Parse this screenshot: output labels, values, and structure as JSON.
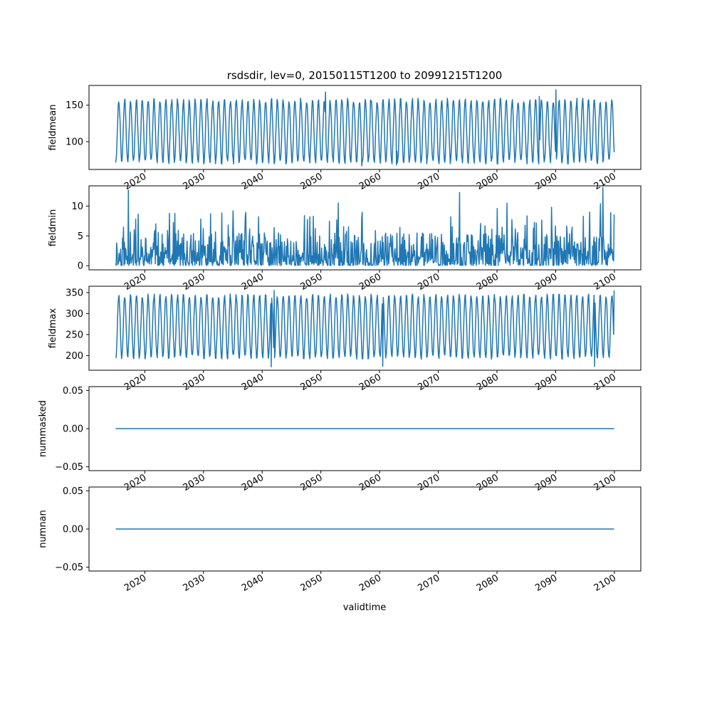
{
  "figure": {
    "title": "rsdsdir, lev=0, 20150115T1200 to 20991215T1200",
    "xlabel": "validtime",
    "series_color": "#1f77b4",
    "axis_color": "#000000"
  },
  "chart_data": [
    {
      "type": "line",
      "ylabel": "fieldmean",
      "ylim": [
        62,
        177
      ],
      "yticks": [
        100,
        150
      ],
      "yticklabels": [
        "100",
        "150"
      ],
      "xlim": [
        2010.5,
        2104.5
      ],
      "xticks": [
        2020,
        2030,
        2040,
        2050,
        2060,
        2070,
        2080,
        2090,
        2100
      ],
      "xticklabels": [
        "2020",
        "2030",
        "2040",
        "2050",
        "2060",
        "2070",
        "2080",
        "2090",
        "2100"
      ],
      "grid": false,
      "series": [
        {
          "frequency": "monthly",
          "x_start": "2015-01",
          "x_end": "2099-12",
          "seasonal_min": 72,
          "seasonal_max": 157,
          "observed_min": 67,
          "observed_max": 171
        }
      ]
    },
    {
      "type": "line",
      "ylabel": "fieldmin",
      "ylim": [
        -0.7,
        13.4
      ],
      "yticks": [
        0,
        5,
        10
      ],
      "yticklabels": [
        "0",
        "5",
        "10"
      ],
      "xlim": [
        2010.5,
        2104.5
      ],
      "xticks": [
        2020,
        2030,
        2040,
        2050,
        2060,
        2070,
        2080,
        2090,
        2100
      ],
      "xticklabels": [
        "2020",
        "2030",
        "2040",
        "2050",
        "2060",
        "2070",
        "2080",
        "2090",
        "2100"
      ],
      "grid": false,
      "series": [
        {
          "frequency": "monthly",
          "x_start": "2015-01",
          "x_end": "2099-12",
          "typical_min": 0,
          "typical_max": 5,
          "observed_max": 13.1
        }
      ]
    },
    {
      "type": "line",
      "ylabel": "fieldmax",
      "ylim": [
        165,
        365
      ],
      "yticks": [
        200,
        250,
        300,
        350
      ],
      "yticklabels": [
        "200",
        "250",
        "300",
        "350"
      ],
      "xlim": [
        2010.5,
        2104.5
      ],
      "xticks": [
        2020,
        2030,
        2040,
        2050,
        2060,
        2070,
        2080,
        2090,
        2100
      ],
      "xticklabels": [
        "2020",
        "2030",
        "2040",
        "2050",
        "2060",
        "2070",
        "2080",
        "2090",
        "2100"
      ],
      "grid": false,
      "series": [
        {
          "frequency": "monthly",
          "x_start": "2015-01",
          "x_end": "2099-12",
          "seasonal_min": 195,
          "seasonal_max": 343,
          "observed_min": 173,
          "observed_max": 355
        }
      ]
    },
    {
      "type": "line",
      "ylabel": "nummasked",
      "ylim": [
        -0.055,
        0.055
      ],
      "yticks": [
        -0.05,
        0.0,
        0.05
      ],
      "yticklabels": [
        "−0.05",
        "0.00",
        "0.05"
      ],
      "xlim": [
        2010.5,
        2104.5
      ],
      "xticks": [
        2020,
        2030,
        2040,
        2050,
        2060,
        2070,
        2080,
        2090,
        2100
      ],
      "xticklabels": [
        "2020",
        "2030",
        "2040",
        "2050",
        "2060",
        "2070",
        "2080",
        "2090",
        "2100"
      ],
      "grid": false,
      "series": [
        {
          "frequency": "monthly",
          "x_start": "2015-01",
          "x_end": "2099-12",
          "constant_value": 0.0
        }
      ]
    },
    {
      "type": "line",
      "ylabel": "numnan",
      "ylim": [
        -0.055,
        0.055
      ],
      "yticks": [
        -0.05,
        0.0,
        0.05
      ],
      "yticklabels": [
        "−0.05",
        "0.00",
        "0.05"
      ],
      "xlim": [
        2010.5,
        2104.5
      ],
      "xticks": [
        2020,
        2030,
        2040,
        2050,
        2060,
        2070,
        2080,
        2090,
        2100
      ],
      "xticklabels": [
        "2020",
        "2030",
        "2040",
        "2050",
        "2060",
        "2070",
        "2080",
        "2090",
        "2100"
      ],
      "grid": false,
      "series": [
        {
          "frequency": "monthly",
          "x_start": "2015-01",
          "x_end": "2099-12",
          "constant_value": 0.0
        }
      ]
    }
  ]
}
